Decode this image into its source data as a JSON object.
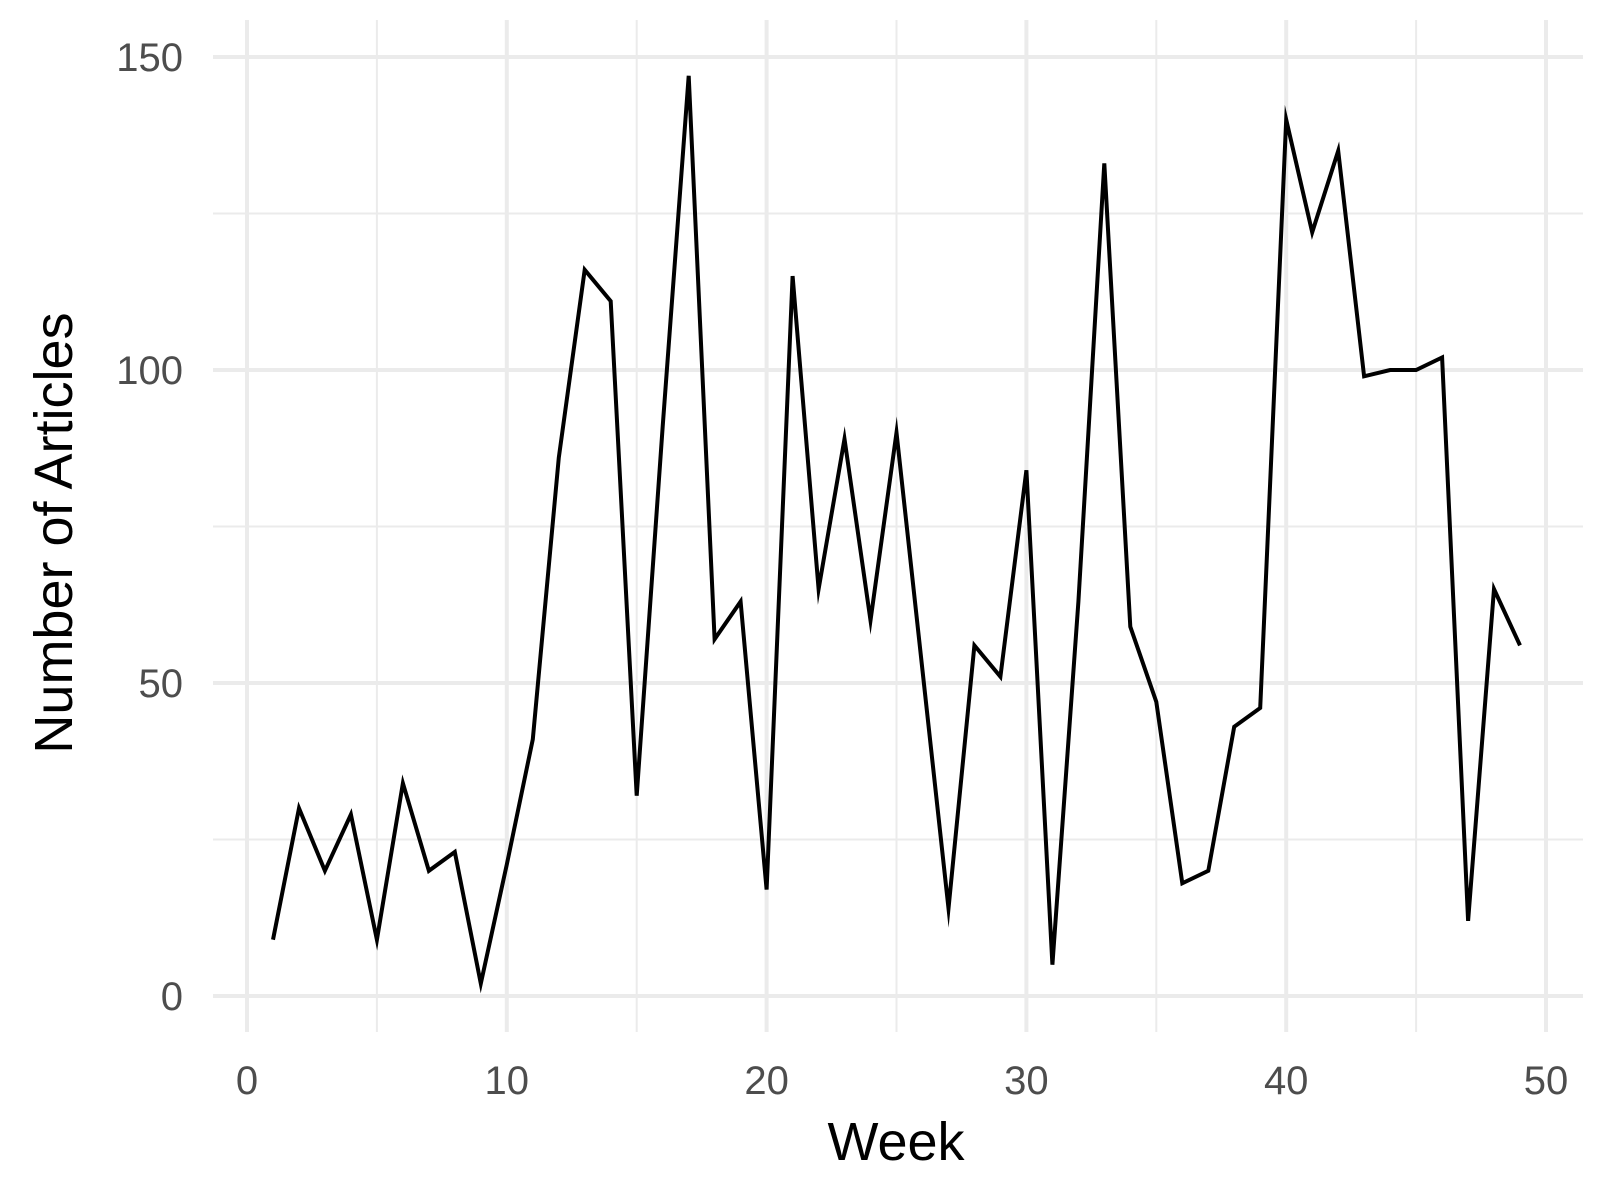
{
  "chart_data": {
    "type": "line",
    "title": "",
    "xlabel": "Week",
    "ylabel": "Number of Articles",
    "xlim": [
      0,
      50
    ],
    "ylim": [
      0,
      150
    ],
    "x_ticks": [
      0,
      10,
      20,
      30,
      40,
      50
    ],
    "y_ticks": [
      0,
      50,
      100,
      150
    ],
    "x_minor_ticks": [
      5,
      15,
      25,
      35,
      45
    ],
    "y_minor_ticks": [
      25,
      75,
      125
    ],
    "grid": true,
    "legend": "none",
    "line_color": "#000000",
    "grid_color": "#ebebeb",
    "series": [
      {
        "x": [
          1,
          2,
          3,
          4,
          5,
          6,
          7,
          8,
          9,
          10,
          11,
          12,
          13,
          14,
          15,
          16,
          17,
          18,
          19,
          20,
          21,
          22,
          23,
          24,
          25,
          26,
          27,
          28,
          29,
          30,
          31,
          32,
          33,
          34,
          35,
          36,
          37,
          38,
          39,
          40,
          41,
          42,
          43,
          44,
          45,
          46,
          47,
          48,
          49
        ],
        "values": [
          9,
          30,
          20,
          29,
          9,
          34,
          20,
          23,
          2,
          21,
          41,
          86,
          116,
          111,
          32,
          91,
          147,
          57,
          63,
          17,
          115,
          65,
          89,
          60,
          90,
          52,
          14,
          56,
          51,
          84,
          5,
          63,
          133,
          59,
          47,
          18,
          20,
          43,
          46,
          140,
          122,
          135,
          99,
          100,
          100,
          102,
          12,
          65,
          56
        ]
      }
    ]
  }
}
